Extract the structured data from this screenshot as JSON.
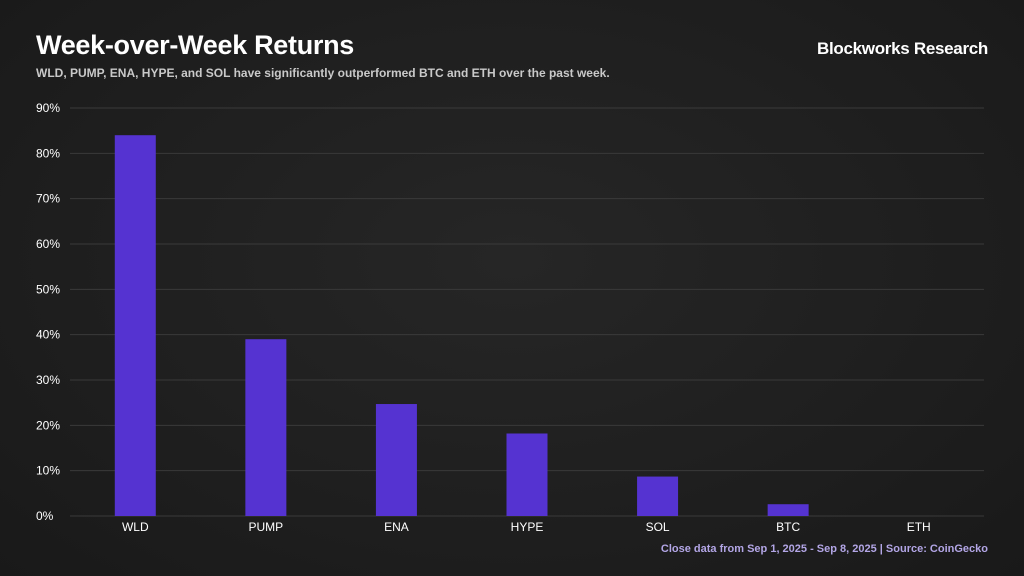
{
  "header": {
    "title": "Week-over-Week Returns",
    "subtitle": "WLD, PUMP, ENA, HYPE, and SOL have significantly outperformed BTC and ETH over the past week.",
    "brand": "Blockworks Research"
  },
  "footer": {
    "source": "Close data from Sep 1, 2025 - Sep 8, 2025 | Source: CoinGecko"
  },
  "colors": {
    "bar": "#5533d1",
    "grid": "#3a3a3a",
    "background": "#1e1e1e"
  },
  "chart_data": {
    "type": "bar",
    "title": "Week-over-Week Returns",
    "xlabel": "",
    "ylabel": "",
    "categories": [
      "WLD",
      "PUMP",
      "ENA",
      "HYPE",
      "SOL",
      "BTC",
      "ETH"
    ],
    "values": [
      84,
      39,
      24.7,
      18.2,
      8.7,
      2.6,
      0
    ],
    "ylim": [
      0,
      90
    ],
    "yticks": [
      "0%",
      "10%",
      "20%",
      "30%",
      "40%",
      "50%",
      "60%",
      "70%",
      "80%",
      "90%"
    ],
    "grid": true,
    "legend": "none"
  }
}
